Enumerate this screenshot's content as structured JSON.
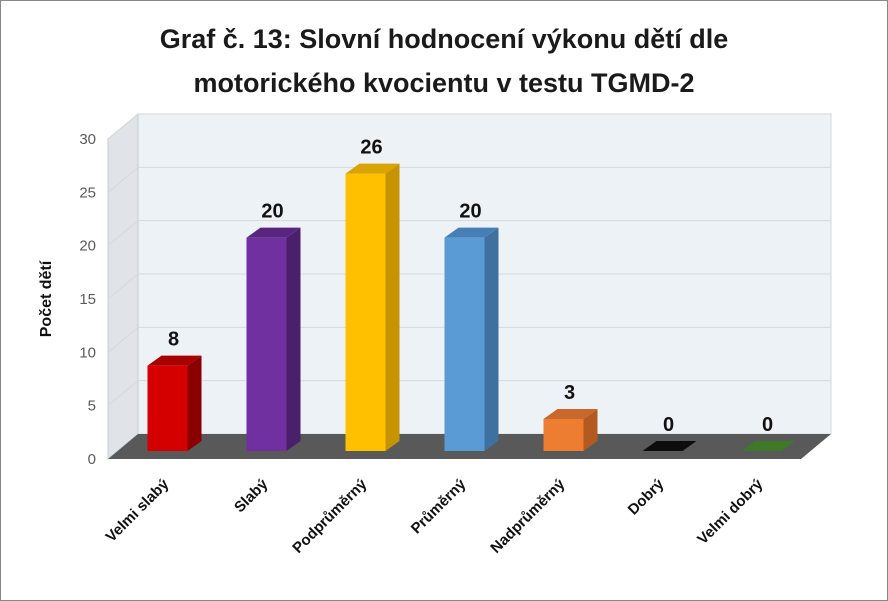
{
  "chart_data": {
    "type": "bar",
    "title_line1": "Graf č. 13: Slovní hodnocení výkonu dětí dle",
    "title_line2": "motorického kvocientu v testu TGMD-2",
    "xlabel": "",
    "ylabel": "Počet dětí",
    "ylim": [
      0,
      30
    ],
    "yticks": [
      0,
      5,
      10,
      15,
      20,
      25,
      30
    ],
    "grid": true,
    "categories": [
      "Velmi slabý",
      "Slabý",
      "Podprůměrný",
      "Průměrný",
      "Nadprůměrný",
      "Dobrý",
      "Velmi dobrý"
    ],
    "values": [
      8,
      20,
      26,
      20,
      3,
      0,
      0
    ],
    "colors": [
      "#d40000",
      "#7030a0",
      "#ffc000",
      "#5b9bd5",
      "#ed7d31",
      "#1a1a1a",
      "#4f8f2f"
    ],
    "side_colors": [
      "#8a0000",
      "#4a1f6c",
      "#c59400",
      "#3e70a0",
      "#b35a20",
      "#000000",
      "#356420"
    ],
    "top_colors": [
      "#a80000",
      "#59257f",
      "#d9a300",
      "#467fb5",
      "#c8682a",
      "#0d0d0d",
      "#3f7826"
    ]
  }
}
